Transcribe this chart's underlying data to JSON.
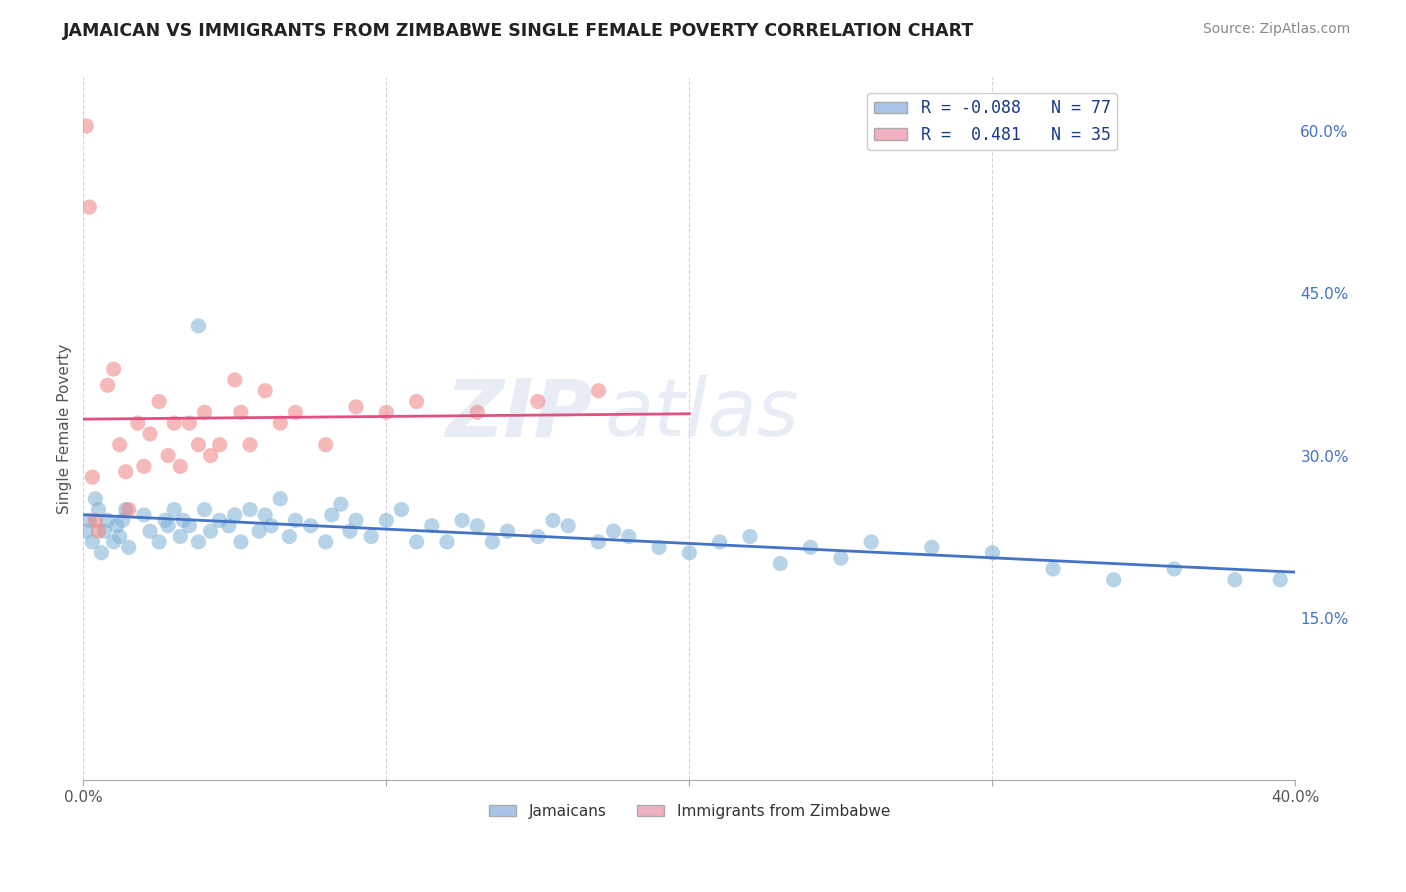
{
  "title": "JAMAICAN VS IMMIGRANTS FROM ZIMBABWE SINGLE FEMALE POVERTY CORRELATION CHART",
  "source": "Source: ZipAtlas.com",
  "ylabel": "Single Female Poverty",
  "xmin": 0.0,
  "xmax": 0.4,
  "ymin": 0.0,
  "ymax": 0.65,
  "x_ticks": [
    0.0,
    0.1,
    0.2,
    0.3,
    0.4
  ],
  "x_tick_labels": [
    "0.0%",
    "",
    "",
    "",
    "40.0%"
  ],
  "y_ticks_right": [
    0.15,
    0.3,
    0.45,
    0.6
  ],
  "y_tick_labels_right": [
    "15.0%",
    "30.0%",
    "45.0%",
    "60.0%"
  ],
  "jamaicans_color": "#7bafd4",
  "zimbabwe_color": "#f08080",
  "trendline_jamaicans_color": "#4472c4",
  "trendline_zimbabwe_color": "#e05080",
  "watermark": "ZIPatlas",
  "background_color": "#ffffff",
  "grid_color": "#c8c8c8",
  "jamaicans_x": [
    0.001,
    0.002,
    0.003,
    0.004,
    0.005,
    0.006,
    0.007,
    0.008,
    0.01,
    0.011,
    0.012,
    0.013,
    0.014,
    0.015,
    0.02,
    0.022,
    0.025,
    0.027,
    0.028,
    0.03,
    0.032,
    0.033,
    0.035,
    0.038,
    0.04,
    0.042,
    0.045,
    0.048,
    0.05,
    0.052,
    0.055,
    0.058,
    0.06,
    0.062,
    0.065,
    0.068,
    0.07,
    0.075,
    0.08,
    0.082,
    0.085,
    0.088,
    0.09,
    0.095,
    0.1,
    0.105,
    0.11,
    0.115,
    0.12,
    0.125,
    0.13,
    0.135,
    0.14,
    0.15,
    0.155,
    0.16,
    0.17,
    0.175,
    0.18,
    0.19,
    0.2,
    0.21,
    0.22,
    0.23,
    0.24,
    0.25,
    0.26,
    0.28,
    0.3,
    0.32,
    0.34,
    0.36,
    0.38,
    0.395,
    0.038
  ],
  "jamaicans_y": [
    0.23,
    0.24,
    0.22,
    0.26,
    0.25,
    0.21,
    0.23,
    0.24,
    0.22,
    0.235,
    0.225,
    0.24,
    0.25,
    0.215,
    0.245,
    0.23,
    0.22,
    0.24,
    0.235,
    0.25,
    0.225,
    0.24,
    0.235,
    0.22,
    0.25,
    0.23,
    0.24,
    0.235,
    0.245,
    0.22,
    0.25,
    0.23,
    0.245,
    0.235,
    0.26,
    0.225,
    0.24,
    0.235,
    0.22,
    0.245,
    0.255,
    0.23,
    0.24,
    0.225,
    0.24,
    0.25,
    0.22,
    0.235,
    0.22,
    0.24,
    0.235,
    0.22,
    0.23,
    0.225,
    0.24,
    0.235,
    0.22,
    0.23,
    0.225,
    0.215,
    0.21,
    0.22,
    0.225,
    0.2,
    0.215,
    0.205,
    0.22,
    0.215,
    0.21,
    0.195,
    0.185,
    0.195,
    0.185,
    0.185,
    0.42
  ],
  "zimbabwe_x": [
    0.001,
    0.002,
    0.003,
    0.004,
    0.005,
    0.008,
    0.01,
    0.012,
    0.014,
    0.015,
    0.018,
    0.02,
    0.022,
    0.025,
    0.028,
    0.03,
    0.032,
    0.035,
    0.038,
    0.04,
    0.042,
    0.045,
    0.05,
    0.052,
    0.055,
    0.06,
    0.065,
    0.07,
    0.08,
    0.09,
    0.1,
    0.11,
    0.13,
    0.15,
    0.17
  ],
  "zimbabwe_y": [
    0.605,
    0.53,
    0.28,
    0.24,
    0.23,
    0.365,
    0.38,
    0.31,
    0.285,
    0.25,
    0.33,
    0.29,
    0.32,
    0.35,
    0.3,
    0.33,
    0.29,
    0.33,
    0.31,
    0.34,
    0.3,
    0.31,
    0.37,
    0.34,
    0.31,
    0.36,
    0.33,
    0.34,
    0.31,
    0.345,
    0.34,
    0.35,
    0.34,
    0.35,
    0.36
  ]
}
